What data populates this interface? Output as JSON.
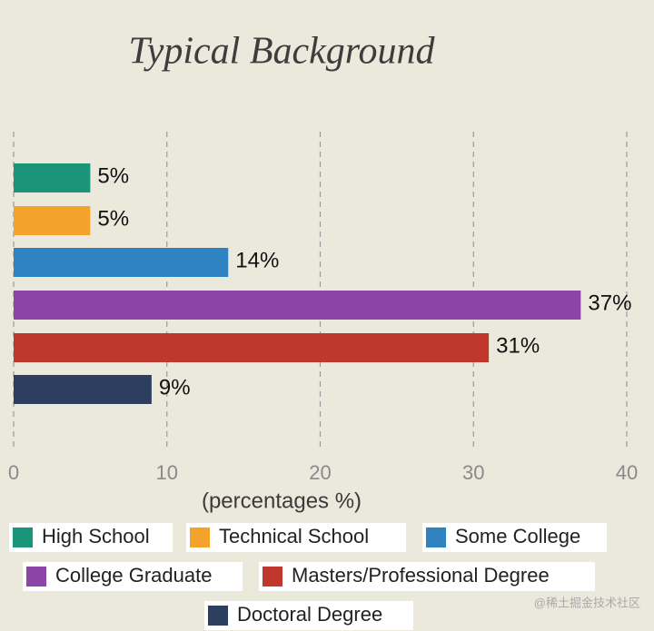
{
  "chart_data": {
    "type": "bar",
    "orientation": "horizontal",
    "title": "Typical Background",
    "categories": [
      "High School",
      "Technical School",
      "Some College",
      "College Graduate",
      "Masters/Professional Degree",
      "Doctoral Degree"
    ],
    "values": [
      5,
      5,
      14,
      37,
      31,
      9
    ],
    "value_labels": [
      "5%",
      "5%",
      "14%",
      "37%",
      "31%",
      "9%"
    ],
    "colors": [
      "#1b957a",
      "#f3a22c",
      "#2f83c0",
      "#8b44a8",
      "#c0382d",
      "#2d3f5f"
    ],
    "xlim": [
      0,
      40
    ],
    "xticks": [
      0,
      10,
      20,
      30,
      40
    ],
    "grid": true,
    "x_label": "(percentages %)"
  },
  "watermark": "@稀土掘金技术社区"
}
